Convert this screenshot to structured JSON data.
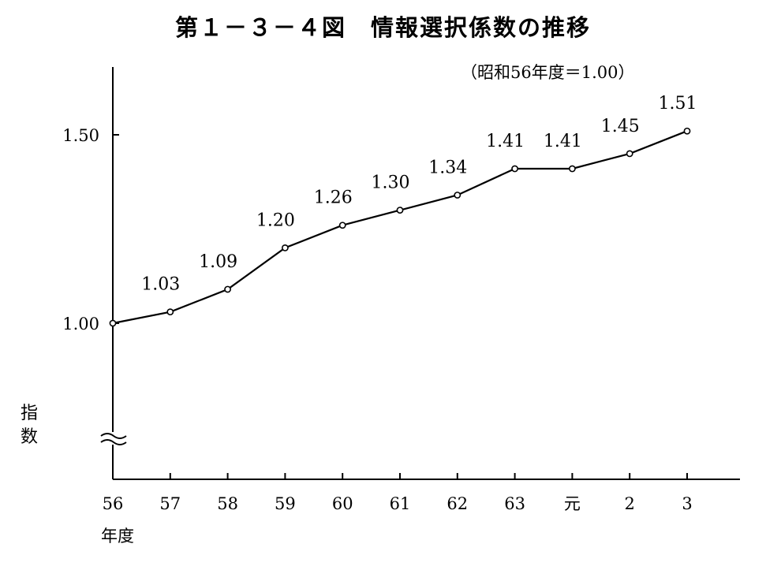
{
  "chart_data": {
    "type": "line",
    "title": "第１－３－４図　情報選択係数の推移",
    "subtitle": "（昭和56年度＝1.00）",
    "ylabel": "指数",
    "xlabel": "年度",
    "categories": [
      "56",
      "57",
      "58",
      "59",
      "60",
      "61",
      "62",
      "63",
      "元",
      "2",
      "3"
    ],
    "series": [
      {
        "values": [
          1.0,
          1.03,
          1.09,
          1.2,
          1.26,
          1.3,
          1.34,
          1.41,
          1.41,
          1.45,
          1.51
        ],
        "labels": [
          "",
          "1.03",
          "1.09",
          "1.20",
          "1.26",
          "1.30",
          "1.34",
          "1.41",
          "1.41",
          "1.45",
          "1.51"
        ]
      }
    ],
    "y_ticks": [
      "1.00",
      "1.50"
    ],
    "ylim": [
      0.7,
      1.7
    ],
    "axis_break": true,
    "grid": false,
    "line_color": "#000000"
  }
}
